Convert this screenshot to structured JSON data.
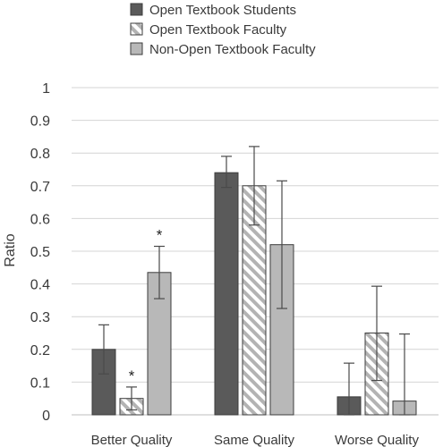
{
  "chart_data": {
    "type": "bar",
    "categories": [
      "Better Quality",
      "Same Quality",
      "Worse Quality"
    ],
    "ylabel": "Ratio",
    "ylim": [
      0,
      1
    ],
    "yticks": [
      "0",
      "0.1",
      "0.2",
      "0.3",
      "0.4",
      "0.5",
      "0.6",
      "0.7",
      "0.8",
      "0.9",
      "1"
    ],
    "grid": true,
    "legend_position": "top",
    "series": [
      {
        "name": "Open Textbook Students",
        "values": [
          0.2,
          0.74,
          0.055
        ],
        "error_low": [
          0.125,
          0.695,
          0.0
        ],
        "error_high": [
          0.275,
          0.79,
          0.158
        ],
        "style": "solid",
        "color": "#5a5a5a",
        "asterisks": [
          "",
          "",
          ""
        ]
      },
      {
        "name": "Open Textbook Faculty",
        "values": [
          0.05,
          0.7,
          0.25
        ],
        "error_low": [
          0.015,
          0.58,
          0.105
        ],
        "error_high": [
          0.085,
          0.82,
          0.393
        ],
        "style": "hatched",
        "color": "#ffffff",
        "hatch_color": "#b3b3b3",
        "asterisks": [
          "*",
          "",
          ""
        ]
      },
      {
        "name": "Non-Open Textbook Faculty",
        "values": [
          0.435,
          0.52,
          0.042
        ],
        "error_low": [
          0.355,
          0.325,
          0.0
        ],
        "error_high": [
          0.515,
          0.715,
          0.247
        ],
        "style": "solid",
        "color": "#b8b8b8",
        "asterisks": [
          "*",
          "",
          ""
        ]
      }
    ]
  }
}
